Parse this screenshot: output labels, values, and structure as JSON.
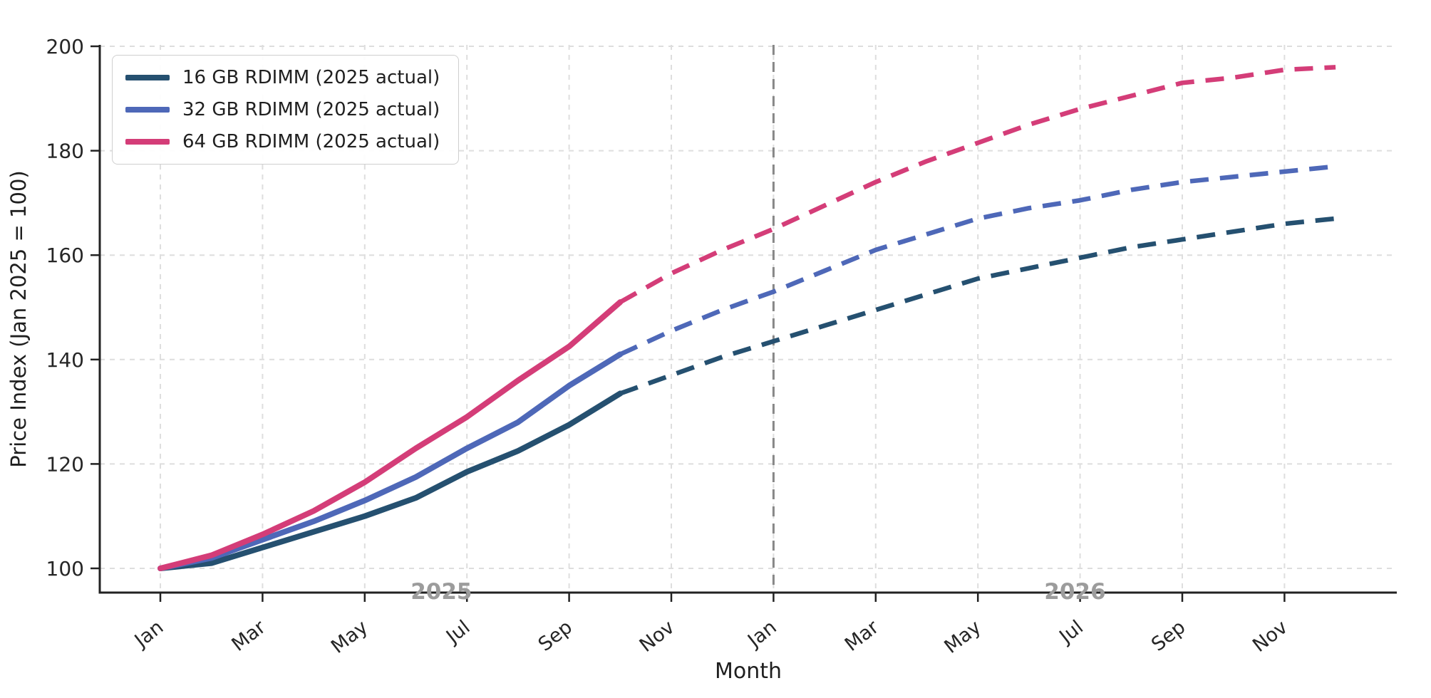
{
  "figure": {
    "xlabel": "Month",
    "ylabel": "Price Index (Jan 2025 = 100)"
  },
  "chart_data": {
    "type": "line",
    "title": "",
    "xlabel": "Month",
    "ylabel": "Price Index (Jan 2025 = 100)",
    "x": [
      "2025-01",
      "2025-02",
      "2025-03",
      "2025-04",
      "2025-05",
      "2025-06",
      "2025-07",
      "2025-08",
      "2025-09",
      "2025-10",
      "2025-11",
      "2025-12",
      "2026-01",
      "2026-02",
      "2026-03",
      "2026-04",
      "2026-05",
      "2026-06",
      "2026-07",
      "2026-08",
      "2026-09",
      "2026-10",
      "2026-11",
      "2026-12"
    ],
    "x_tick_months": [
      0,
      2,
      4,
      6,
      8,
      10,
      12,
      14,
      16,
      18,
      20,
      22
    ],
    "x_tick_labels": [
      "Jan",
      "Mar",
      "May",
      "Jul",
      "Sep",
      "Nov",
      "Jan",
      "Mar",
      "May",
      "Jul",
      "Sep",
      "Nov"
    ],
    "yticks": [
      100,
      120,
      140,
      160,
      180,
      200
    ],
    "ylim": [
      95.4,
      200.3
    ],
    "grid": true,
    "legend_position": "upper-left",
    "actual_through": "2025-10",
    "forecast_divider_month_index": 12,
    "year_annotations": [
      {
        "label": "2025",
        "month_index": 5.5
      },
      {
        "label": "2026",
        "month_index": 17.9
      }
    ],
    "series": [
      {
        "name": "16 GB RDIMM (2025 actual)",
        "color": "#255070",
        "actual_through_index": 9,
        "values": [
          100,
          101,
          104,
          107,
          110,
          113.5,
          118.5,
          122.5,
          127.5,
          133.5,
          137,
          140.5,
          143.5,
          146.5,
          149.5,
          152.5,
          155.5,
          157.5,
          159.5,
          161.5,
          163,
          164.5,
          166,
          167
        ]
      },
      {
        "name": "32 GB RDIMM (2025 actual)",
        "color": "#4e68b8",
        "actual_through_index": 9,
        "values": [
          100,
          102,
          105.5,
          109,
          113,
          117.5,
          123,
          128,
          135,
          141,
          145.5,
          149.5,
          153,
          157,
          161,
          164,
          167,
          169,
          170.5,
          172.5,
          174,
          175,
          176,
          177
        ]
      },
      {
        "name": "64 GB RDIMM (2025 actual)",
        "color": "#d43d78",
        "actual_through_index": 9,
        "values": [
          100,
          102.5,
          106.5,
          111,
          116.5,
          123,
          129,
          136,
          142.5,
          151,
          156.5,
          161,
          165,
          169.5,
          174,
          178,
          181.5,
          185,
          188,
          190.5,
          193,
          194,
          195.5,
          196
        ]
      }
    ],
    "style": {
      "grid_color": "#dedede",
      "spine_color": "#222222",
      "divider_color": "#878787",
      "year_label_color": "#9c9c9c",
      "tick_label_color": "#262626"
    }
  }
}
